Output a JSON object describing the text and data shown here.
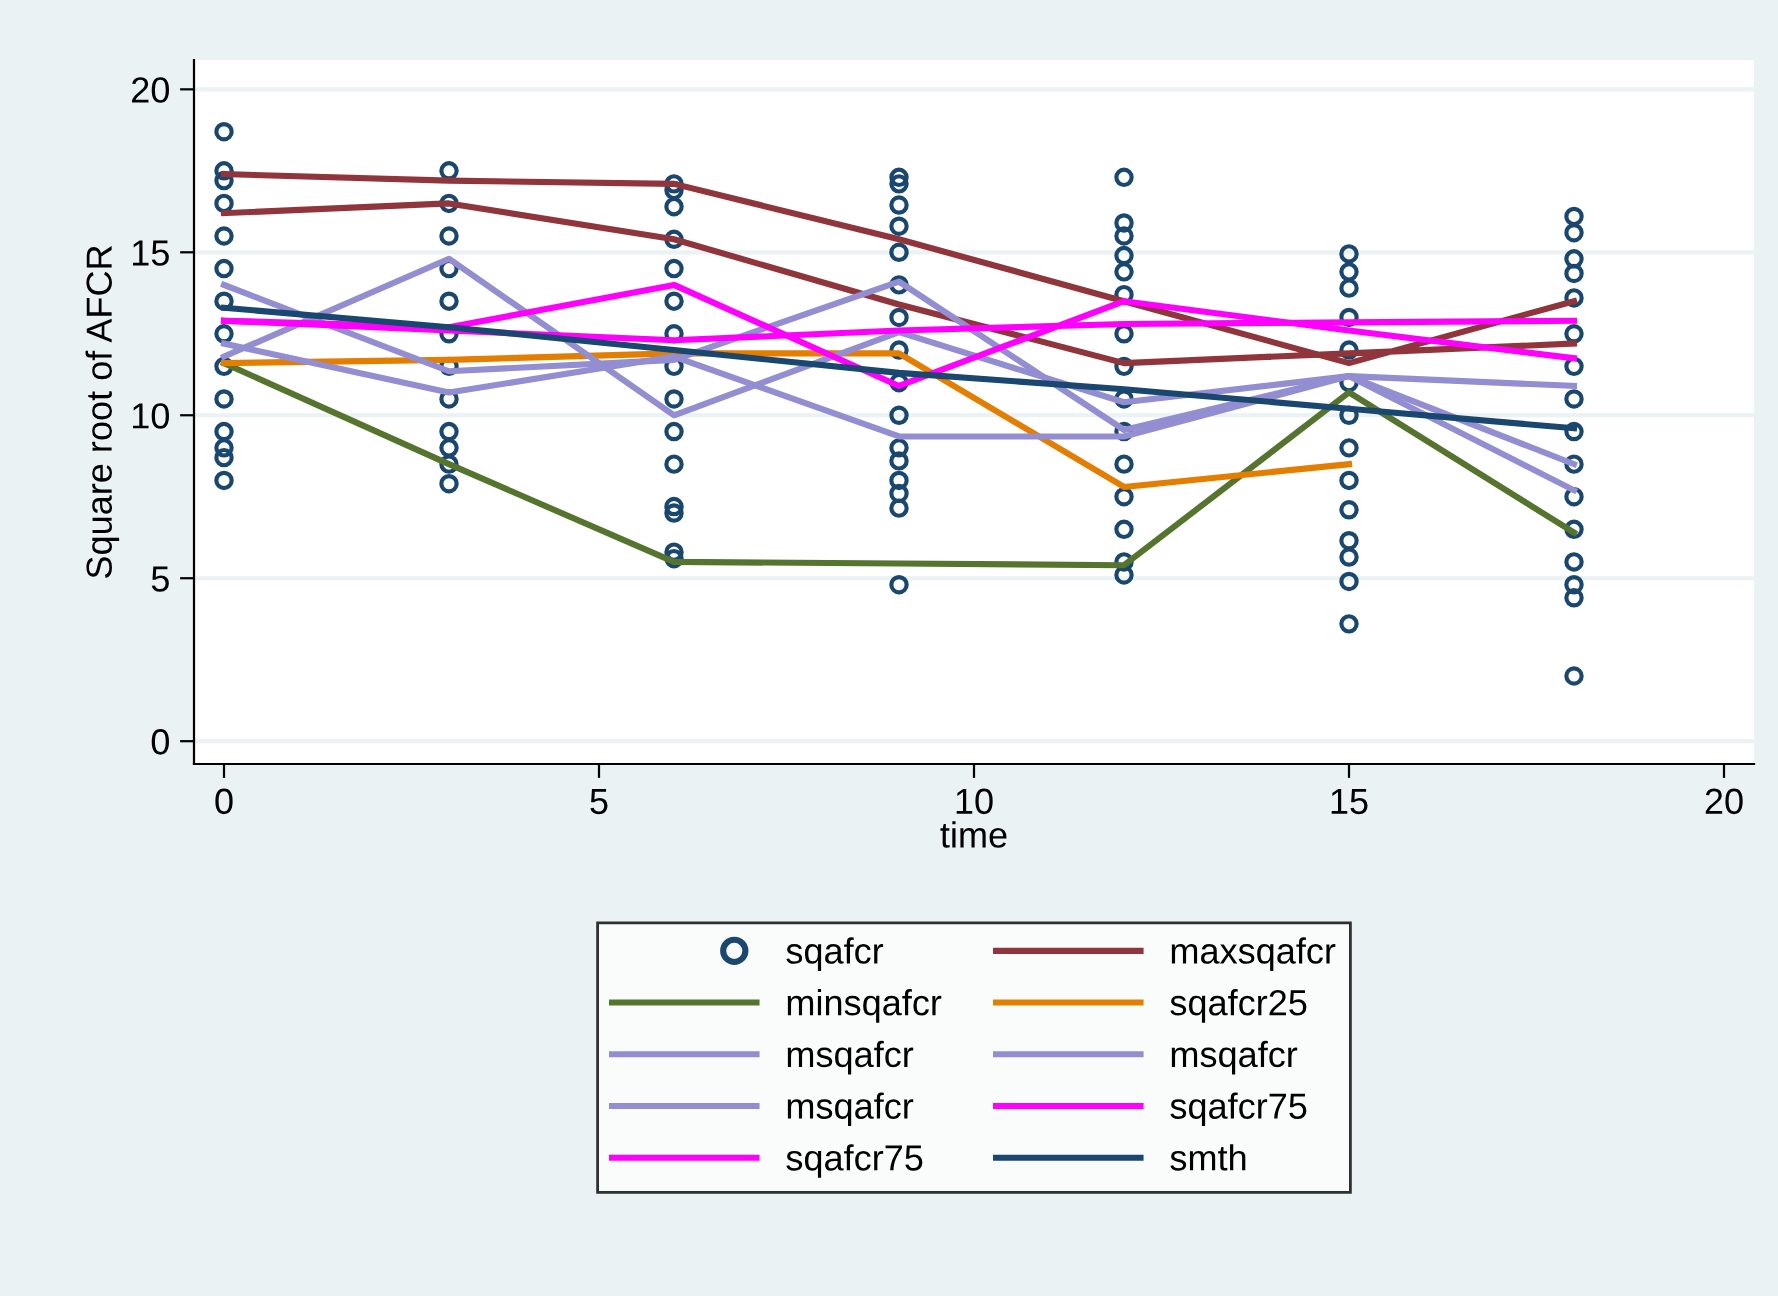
{
  "chart_data": {
    "type": "line",
    "xlabel": "time",
    "ylabel": "Square root of AFCR",
    "xlim": [
      -0.4,
      20.4
    ],
    "ylim": [
      -0.7,
      20.9
    ],
    "xticks": [
      0,
      5,
      10,
      15,
      20
    ],
    "yticks": [
      0,
      5,
      10,
      15,
      20
    ],
    "grid": "y",
    "legend": "bottom",
    "series": [
      {
        "name": "sqafcr",
        "type": "scatter",
        "marker": "circle",
        "color": "#1a476f",
        "x": [
          0,
          0,
          0,
          0,
          0,
          0,
          0,
          0,
          0,
          0,
          0,
          0,
          0,
          0,
          3,
          3,
          3,
          3,
          3,
          3,
          3,
          3,
          3,
          3,
          3,
          3,
          6,
          6,
          6,
          6,
          6,
          6,
          6,
          6,
          6,
          6,
          6,
          6,
          6,
          6,
          6,
          9,
          9,
          9,
          9,
          9,
          9,
          9,
          9,
          9,
          9,
          9,
          9,
          9,
          9,
          9,
          9,
          12,
          12,
          12,
          12,
          12,
          12,
          12,
          12,
          12,
          12,
          12,
          12,
          12,
          12,
          12,
          15,
          15,
          15,
          15,
          15,
          15,
          15,
          15,
          15,
          15,
          15,
          15,
          15,
          15,
          18,
          18,
          18,
          18,
          18,
          18,
          18,
          18,
          18,
          18,
          18,
          18,
          18,
          18,
          18,
          18
        ],
        "values": [
          18.7,
          17.5,
          17.2,
          16.5,
          15.5,
          14.5,
          13.5,
          12.5,
          11.5,
          10.5,
          9.5,
          9.0,
          8.7,
          8.0,
          17.5,
          16.5,
          15.5,
          14.5,
          13.5,
          12.5,
          11.5,
          10.5,
          9.5,
          9.0,
          8.5,
          7.9,
          17.1,
          16.9,
          16.4,
          15.4,
          14.5,
          13.5,
          12.5,
          11.5,
          10.5,
          9.5,
          8.5,
          7.2,
          7.0,
          5.8,
          5.6,
          17.3,
          17.1,
          16.45,
          15.8,
          15.0,
          14.0,
          13.0,
          12.0,
          11.0,
          10.0,
          9.0,
          8.6,
          8.0,
          7.6,
          7.15,
          4.8,
          17.3,
          15.9,
          15.5,
          14.9,
          14.4,
          13.7,
          12.5,
          11.5,
          10.5,
          9.5,
          8.5,
          7.5,
          6.5,
          5.5,
          5.1,
          14.95,
          14.4,
          13.9,
          13.0,
          12.0,
          11.0,
          10.0,
          9.0,
          8.0,
          7.1,
          6.15,
          5.65,
          4.9,
          3.6,
          16.1,
          15.6,
          14.8,
          14.35,
          13.6,
          12.5,
          11.5,
          10.5,
          9.5,
          8.5,
          7.5,
          6.5,
          5.5,
          4.8,
          4.4,
          2.0
        ]
      },
      {
        "name": "maxsqafcr",
        "color": "#90353b",
        "x": [
          0,
          3,
          6,
          9,
          12,
          15,
          18,
          null,
          0,
          3,
          6,
          9,
          12,
          15,
          18
        ],
        "values": [
          17.4,
          17.2,
          17.1,
          15.4,
          13.5,
          11.6,
          13.5,
          null,
          16.2,
          16.5,
          15.4,
          13.4,
          11.6,
          11.9,
          12.2
        ]
      },
      {
        "name": "minsqafcr",
        "color": "#55752f",
        "x": [
          0,
          3,
          6,
          9,
          12,
          15,
          18
        ],
        "values": [
          11.6,
          8.5,
          5.5,
          5.45,
          5.4,
          10.7,
          6.4
        ]
      },
      {
        "name": "sqafcr25",
        "color": "#e37e00",
        "x": [
          0,
          3,
          6,
          9,
          12,
          15
        ],
        "values": [
          11.6,
          11.7,
          11.9,
          11.9,
          7.8,
          8.5
        ]
      },
      {
        "name": "msqafcr",
        "color": "#938dd2",
        "x": [
          0,
          3,
          6,
          9,
          12,
          15,
          18
        ],
        "values": [
          11.8,
          14.8,
          10.0,
          12.55,
          10.4,
          11.2,
          10.9
        ]
      },
      {
        "name": "msqafcr",
        "color": "#938dd2",
        "x": [
          0,
          3,
          6,
          9,
          12,
          15,
          18
        ],
        "values": [
          14.0,
          11.35,
          11.7,
          14.1,
          9.55,
          11.2,
          8.5
        ]
      },
      {
        "name": "msqafcr",
        "color": "#938dd2",
        "x": [
          0,
          3,
          6,
          9,
          12,
          15,
          18
        ],
        "values": [
          12.2,
          10.7,
          11.8,
          9.35,
          9.35,
          11.2,
          7.7
        ]
      },
      {
        "name": "sqafcr75",
        "color": "#ff00ff",
        "x": [
          0,
          3,
          6,
          9,
          12,
          15,
          18
        ],
        "values": [
          12.9,
          12.7,
          14.0,
          10.9,
          13.5,
          12.6,
          11.75
        ]
      },
      {
        "name": "sqafcr75",
        "color": "#ff00ff",
        "x": [
          0,
          3,
          6,
          9,
          12,
          15,
          18
        ],
        "values": [
          12.9,
          12.6,
          12.3,
          12.6,
          12.8,
          12.85,
          12.9
        ]
      },
      {
        "name": "smth",
        "color": "#1a476f",
        "x": [
          0,
          3,
          6,
          9,
          12,
          15,
          18
        ],
        "values": [
          13.3,
          12.7,
          12.0,
          11.3,
          10.8,
          10.2,
          9.6
        ]
      }
    ]
  }
}
